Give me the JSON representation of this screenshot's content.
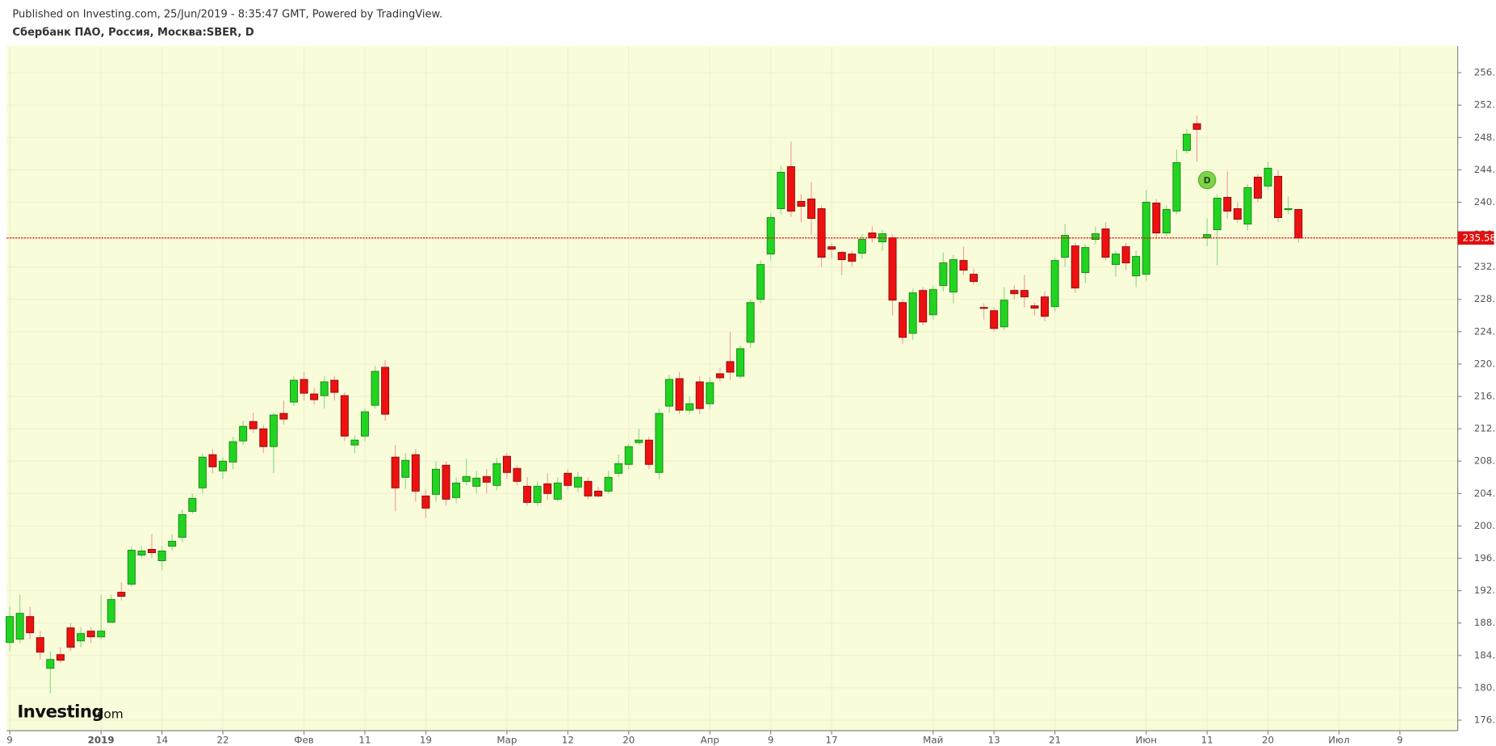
{
  "chart_data": {
    "type": "candlestick",
    "published": "Published on Investing.com, 25/Jun/2019 - 8:35:47 GMT, Powered by TradingView.",
    "title": "Сбербанк ПАО, Россия, Москва:SBER, D",
    "logo": "Investing",
    "logo_suffix": ".com",
    "open": [
      185.6,
      186.0,
      188.8,
      186.2,
      182.4,
      184.1,
      187.4,
      185.8,
      187.0,
      186.3,
      188.1,
      191.8,
      192.8,
      196.4,
      197.1,
      195.7,
      197.5,
      198.6,
      201.8,
      204.7,
      208.8,
      206.8,
      207.9,
      210.5,
      212.9,
      212.0,
      209.8,
      213.9,
      215.3,
      218.1,
      216.3,
      216.1,
      218.0,
      216.1,
      210.0,
      211.1,
      214.9,
      219.6,
      208.5,
      206.0,
      208.8,
      203.7,
      203.9,
      207.5,
      203.5,
      205.5,
      204.9,
      206.1,
      205.0,
      208.6,
      207.1,
      204.9,
      202.9,
      205.2,
      203.3,
      206.5,
      204.8,
      205.5,
      204.3,
      204.3,
      206.5,
      207.6,
      210.3,
      210.6,
      206.6,
      214.8,
      218.2,
      214.3,
      217.8,
      215.1,
      218.8,
      220.3,
      218.5,
      222.7,
      228.0,
      233.6,
      239.2,
      244.4,
      240.1,
      240.4,
      239.2,
      234.5,
      233.8,
      233.6,
      233.7,
      236.2,
      235.1,
      235.6,
      227.6,
      223.8,
      229.1,
      226.1,
      229.7,
      228.9,
      232.8,
      231.1,
      227.0,
      226.6,
      224.6,
      229.1,
      229.1,
      227.2,
      228.3,
      227.1,
      233.2,
      234.6,
      231.3,
      235.4,
      236.7,
      232.3,
      234.5,
      230.9,
      231.1,
      239.9,
      236.2,
      238.9,
      246.4,
      249.7,
      235.6,
      236.6,
      240.6,
      239.2,
      237.3,
      243.1,
      242.0,
      243.2,
      239.1,
      239.1
    ],
    "high": [
      190,
      191.5,
      190,
      187,
      184.5,
      185,
      188,
      187.5,
      187.5,
      191.5,
      191.5,
      193,
      197.5,
      197.5,
      199,
      197.5,
      199,
      202,
      204,
      209,
      209.5,
      208.5,
      211,
      213,
      214,
      212.5,
      214,
      215.5,
      218.5,
      219,
      217,
      218.5,
      218.5,
      216.5,
      211.2,
      214.5,
      219.8,
      220.5,
      210,
      209,
      209.5,
      204.5,
      208,
      208,
      206,
      208.3,
      206.8,
      207,
      208.4,
      209,
      207.5,
      206,
      205.5,
      206.5,
      206,
      207,
      206.7,
      206,
      204.8,
      206.8,
      208.8,
      210.2,
      212,
      211,
      214.5,
      218.7,
      219,
      216,
      218.5,
      218.4,
      219.5,
      224,
      222.3,
      228,
      232.8,
      238.6,
      244.5,
      247.5,
      241,
      242.5,
      239.6,
      235,
      234,
      234,
      236,
      237,
      236.6,
      236,
      228,
      229.3,
      229.5,
      229.7,
      233.8,
      233.5,
      234.5,
      231.8,
      227.5,
      227,
      229.5,
      229.7,
      231,
      227.6,
      229,
      233.2,
      237.3,
      235,
      234.8,
      237,
      237.5,
      234,
      235,
      234,
      241.5,
      240.4,
      239.6,
      246.5,
      249,
      250.7,
      238,
      241,
      243.8,
      240,
      242.2,
      243.5,
      245,
      244,
      240.7,
      239.2
    ],
    "low": [
      184.5,
      185.5,
      186,
      183.5,
      179.3,
      183,
      184.5,
      185,
      185.5,
      186,
      188,
      190.8,
      192.5,
      196,
      196,
      194.5,
      197,
      198,
      201.5,
      204,
      206.5,
      205.8,
      207,
      210,
      211.5,
      209,
      206.5,
      212.5,
      214.8,
      215.5,
      215,
      214.5,
      215.5,
      210.5,
      209,
      210.5,
      214.5,
      213,
      201.8,
      204.6,
      203,
      201,
      203,
      202.5,
      202.8,
      205,
      204,
      204,
      204.4,
      205.8,
      205,
      202.5,
      202.5,
      203.2,
      203,
      204.5,
      204.2,
      203.3,
      203.5,
      204,
      206,
      207,
      210,
      207,
      205.8,
      214,
      213.8,
      213.8,
      213.8,
      214.5,
      217.8,
      218,
      218.2,
      222,
      227.5,
      232.8,
      238.5,
      238.2,
      237.5,
      236,
      232,
      233,
      231,
      232,
      233,
      235,
      234,
      226,
      222.5,
      223,
      224.8,
      225.5,
      229,
      227.5,
      231,
      229.8,
      225.5,
      224,
      224.2,
      228,
      227,
      226,
      225.3,
      226.5,
      232,
      228.8,
      230,
      234.8,
      232.8,
      230.8,
      231.6,
      229.5,
      230.3,
      235.5,
      235.8,
      238.5,
      246,
      245,
      234.6,
      232.2,
      238,
      237.5,
      236.5,
      240,
      241.5,
      237.5,
      238.5,
      235
    ],
    "close": [
      188.8,
      189.2,
      186.8,
      184.4,
      183.5,
      183.4,
      185.0,
      186.7,
      186.3,
      187.0,
      190.9,
      191.3,
      197.0,
      196.9,
      196.7,
      196.9,
      198.1,
      201.4,
      203.4,
      208.5,
      207.3,
      208.0,
      210.4,
      212.3,
      212.0,
      209.8,
      213.7,
      213.2,
      218.0,
      216.4,
      215.6,
      217.8,
      216.5,
      211.1,
      210.6,
      214.1,
      219.1,
      213.8,
      204.7,
      208.1,
      204.3,
      202.2,
      207.0,
      203.3,
      205.3,
      206.1,
      205.9,
      205.4,
      207.7,
      206.6,
      205.5,
      202.9,
      204.9,
      204.0,
      205.3,
      205.0,
      206.0,
      203.7,
      203.7,
      206.0,
      207.7,
      209.8,
      210.6,
      207.6,
      213.9,
      218.1,
      214.3,
      215.1,
      214.5,
      217.7,
      218.3,
      219.0,
      221.9,
      227.6,
      232.3,
      238.1,
      243.7,
      238.9,
      239.5,
      238.0,
      233.2,
      234.2,
      232.9,
      232.7,
      235.4,
      235.6,
      236.1,
      227.9,
      223.3,
      228.8,
      225.2,
      229.2,
      232.5,
      232.9,
      231.6,
      230.2,
      226.9,
      224.4,
      227.9,
      228.7,
      228.3,
      226.9,
      225.9,
      232.8,
      235.9,
      229.4,
      234.4,
      236.1,
      233.2,
      233.6,
      232.5,
      233.3,
      240.0,
      236.2,
      239.1,
      244.9,
      248.4,
      249.0,
      236.0,
      240.5,
      238.9,
      237.9,
      241.8,
      240.5,
      244.2,
      238.1,
      239.2,
      235.58
    ],
    "up_color": "#22d422",
    "down_color": "#ee1111",
    "last_price": 235.58,
    "event_marker": {
      "label": "D",
      "x": 118
    },
    "xlim": [
      -0.3,
      142.7
    ],
    "xticks": [
      {
        "value": 0,
        "label": "9"
      },
      {
        "value": 9,
        "label": "2019"
      },
      {
        "value": 15,
        "label": "14"
      },
      {
        "value": 21,
        "label": "22"
      },
      {
        "value": 29,
        "label": "Фев"
      },
      {
        "value": 35,
        "label": "11"
      },
      {
        "value": 41,
        "label": "19"
      },
      {
        "value": 49,
        "label": "Мар"
      },
      {
        "value": 55,
        "label": "12"
      },
      {
        "value": 61,
        "label": "20"
      },
      {
        "value": 69,
        "label": "Апр"
      },
      {
        "value": 75,
        "label": "9"
      },
      {
        "value": 81,
        "label": "17"
      },
      {
        "value": 91,
        "label": "Май"
      },
      {
        "value": 97,
        "label": "13"
      },
      {
        "value": 103,
        "label": "21"
      },
      {
        "value": 112,
        "label": "Июн"
      },
      {
        "value": 118,
        "label": "11"
      },
      {
        "value": 124,
        "label": "20"
      },
      {
        "value": 131,
        "label": "Июл"
      },
      {
        "value": 137,
        "label": "9"
      }
    ],
    "ylim": [
      174.7,
      259.3
    ],
    "yticks": [
      {
        "value": 176,
        "label": "176.00"
      },
      {
        "value": 180,
        "label": "180.00"
      },
      {
        "value": 184,
        "label": "184.00"
      },
      {
        "value": 188,
        "label": "188.00"
      },
      {
        "value": 192,
        "label": "192.00"
      },
      {
        "value": 196,
        "label": "196.00"
      },
      {
        "value": 200,
        "label": "200.00"
      },
      {
        "value": 204,
        "label": "204.00"
      },
      {
        "value": 208,
        "label": "208.00"
      },
      {
        "value": 212,
        "label": "212.00"
      },
      {
        "value": 216,
        "label": "216.00"
      },
      {
        "value": 220,
        "label": "220.00"
      },
      {
        "value": 224,
        "label": "224.00"
      },
      {
        "value": 228,
        "label": "228.00"
      },
      {
        "value": 232,
        "label": "232.00"
      },
      {
        "value": 236,
        "label": "236.00"
      },
      {
        "value": 240,
        "label": "240.00"
      },
      {
        "value": 244,
        "label": "244.00"
      },
      {
        "value": 248,
        "label": "248.00"
      },
      {
        "value": 252,
        "label": "252.00"
      },
      {
        "value": 256,
        "label": "256.00"
      }
    ],
    "grid": true
  }
}
